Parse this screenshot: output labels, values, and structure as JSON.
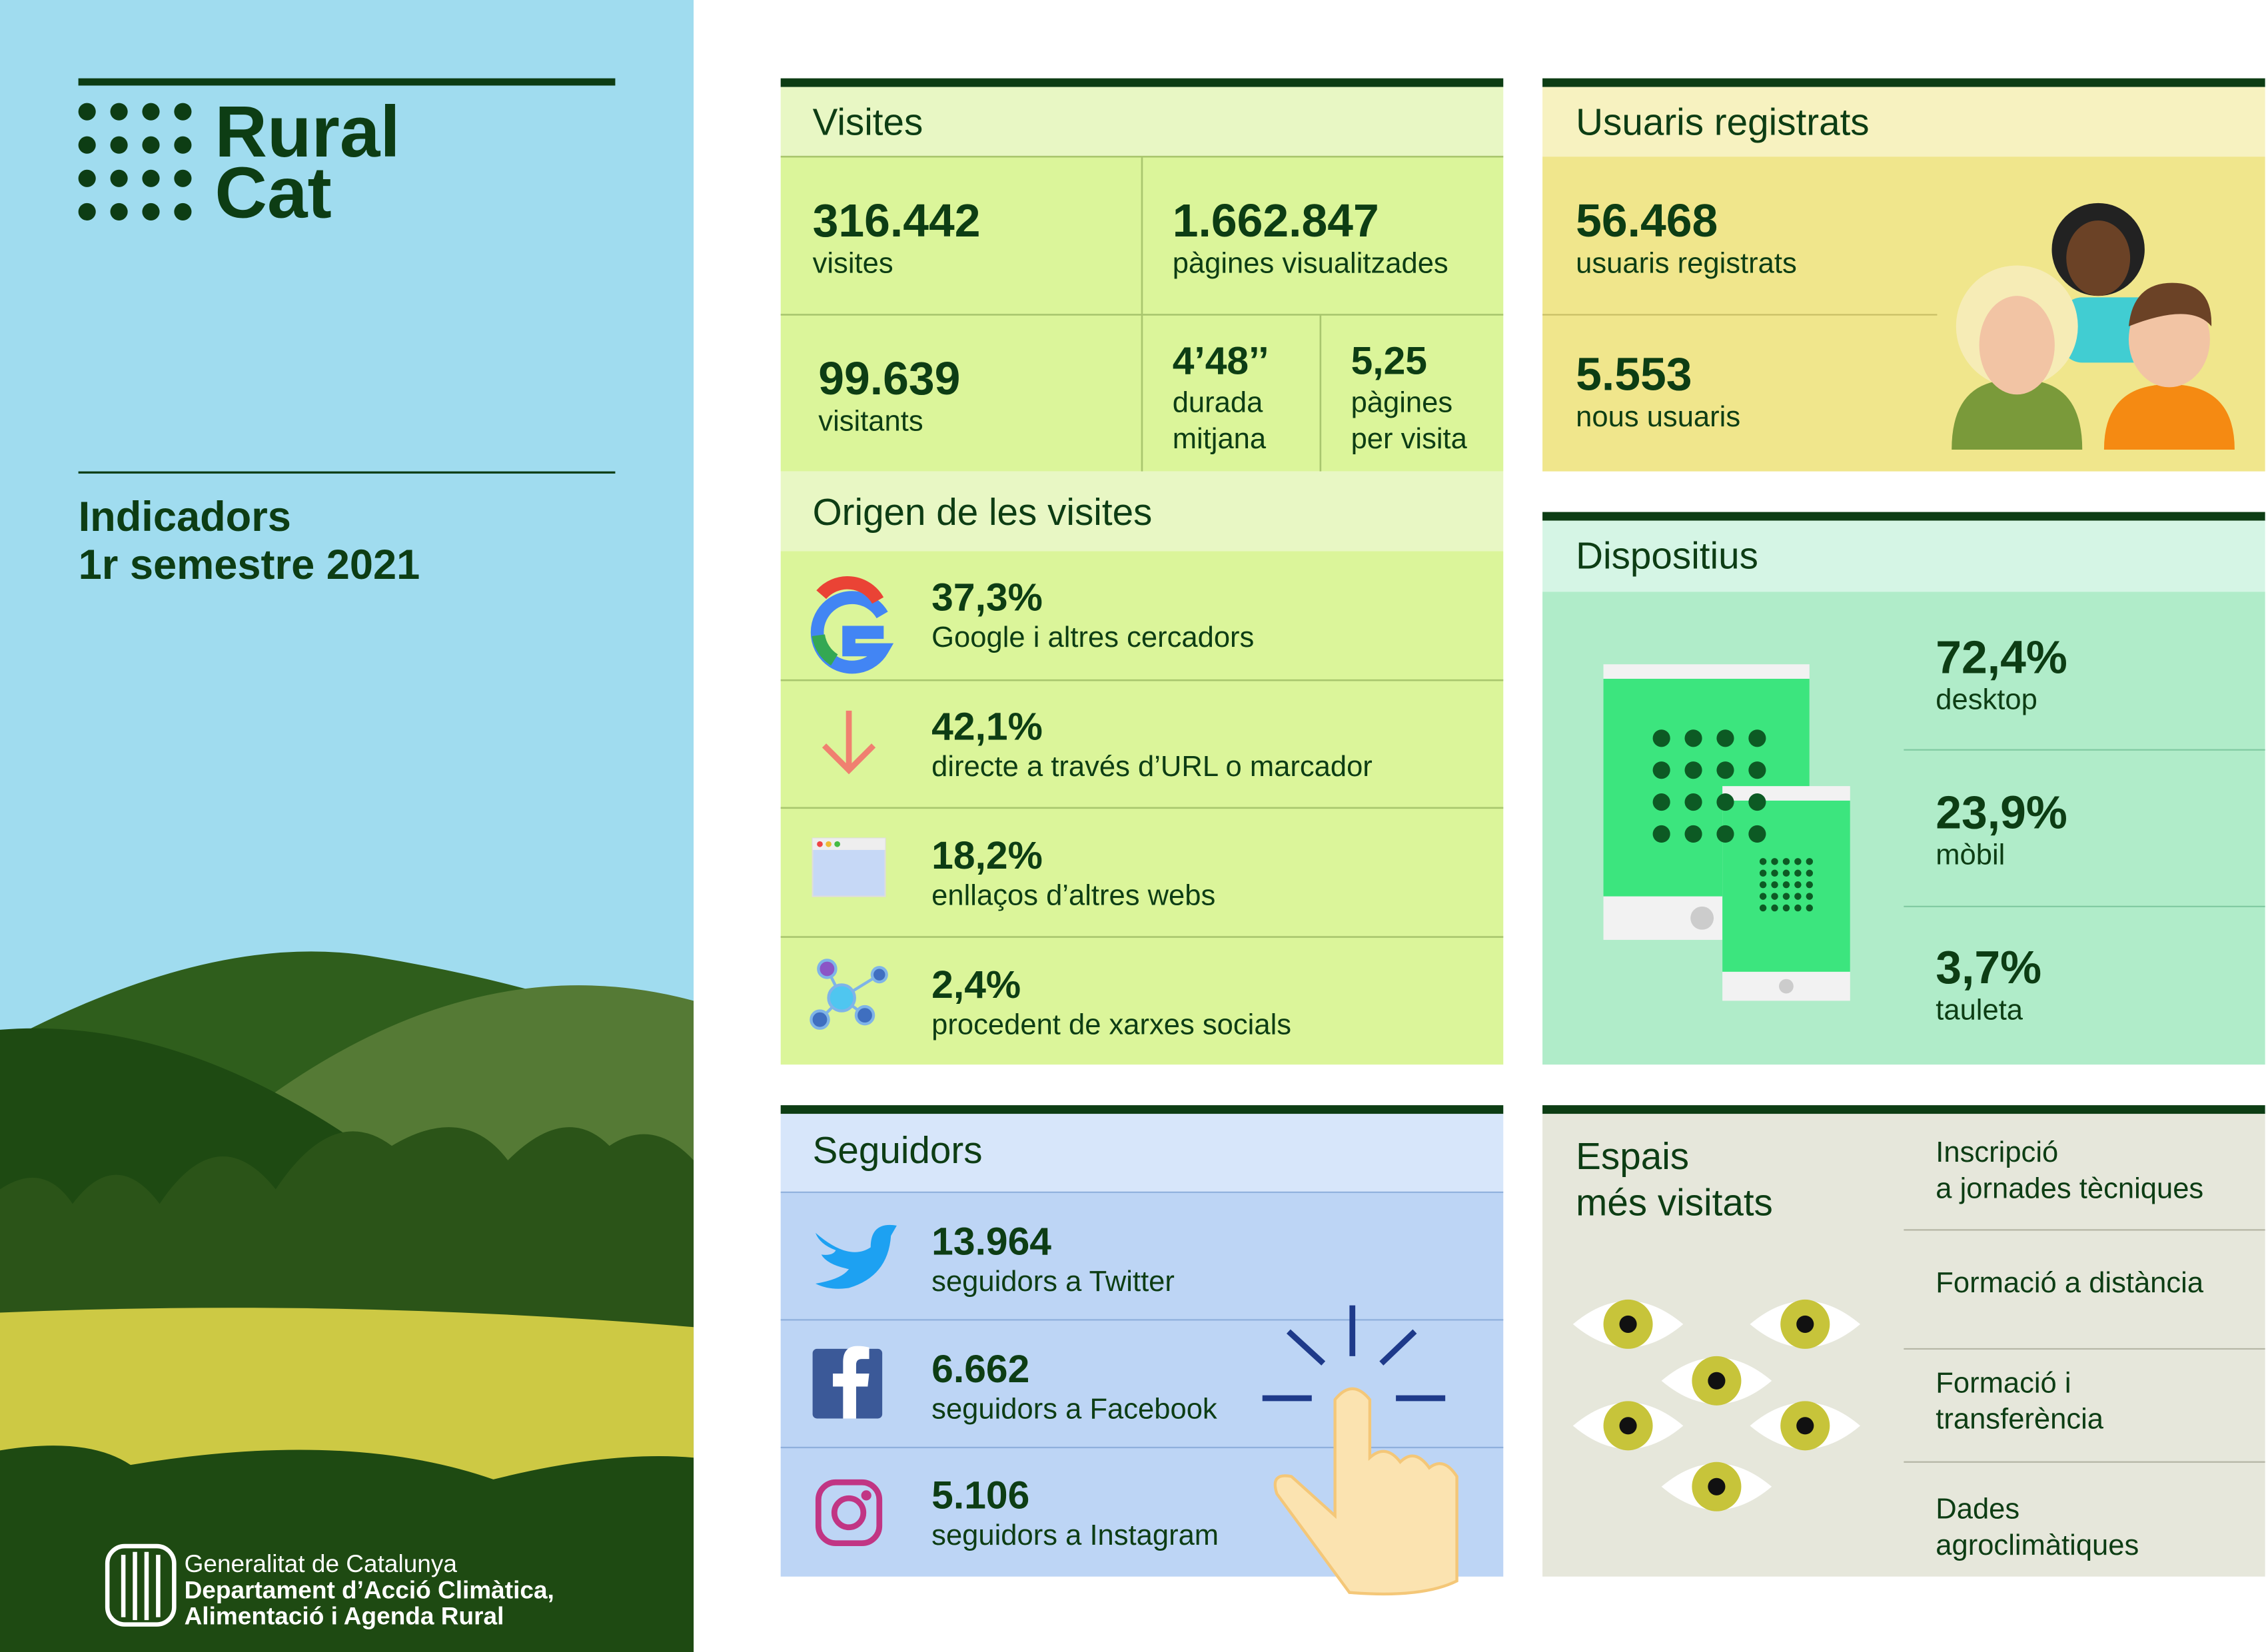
{
  "brand": {
    "line1": "Rural",
    "line2": "Cat"
  },
  "heading": {
    "line1": "Indicadors",
    "line2": "1r semestre 2021"
  },
  "footer": {
    "line1": "Generalitat de Catalunya",
    "line2": "Departament d’Acció Climàtica,",
    "line3": "Alimentació i Agenda Rural"
  },
  "visites": {
    "title": "Visites",
    "stats": [
      {
        "value": "316.442",
        "label": [
          "visites"
        ]
      },
      {
        "value": "1.662.847",
        "label": [
          "pàgines visualitzades"
        ]
      },
      {
        "value": "99.639",
        "label": [
          "visitants"
        ]
      },
      {
        "value": "4’48’’",
        "label": [
          "durada",
          "mitjana"
        ]
      },
      {
        "value": "5,25",
        "label": [
          "pàgines",
          "per visita"
        ]
      }
    ]
  },
  "origen": {
    "title": "Origen de les visites",
    "items": [
      {
        "value": "37,3%",
        "label": "Google i altres cercadors"
      },
      {
        "value": "42,1%",
        "label": "directe a través d’URL o marcador"
      },
      {
        "value": "18,2%",
        "label": "enllaços d’altres webs"
      },
      {
        "value": "2,4%",
        "label": "procedent de xarxes socials"
      }
    ]
  },
  "usuaris": {
    "title": "Usuaris registrats",
    "stats": [
      {
        "value": "56.468",
        "label": "usuaris registrats"
      },
      {
        "value": "5.553",
        "label": "nous usuaris"
      }
    ]
  },
  "dispositius": {
    "title": "Dispositius",
    "items": [
      {
        "value": "72,4%",
        "label": "desktop"
      },
      {
        "value": "23,9%",
        "label": "mòbil"
      },
      {
        "value": "3,7%",
        "label": "tauleta"
      }
    ]
  },
  "seguidors": {
    "title": "Seguidors",
    "items": [
      {
        "value": "13.964",
        "label": "seguidors a Twitter"
      },
      {
        "value": "6.662",
        "label": "seguidors a Facebook"
      },
      {
        "value": "5.106",
        "label": "seguidors a Instagram"
      }
    ]
  },
  "espais": {
    "title": [
      "Espais",
      "més visitats"
    ],
    "items": [
      [
        "Inscripció",
        "a jornades tècniques"
      ],
      [
        "Formació a distància"
      ],
      [
        "Formació i",
        "transferència"
      ],
      [
        "Dades",
        "agroclimàtiques"
      ]
    ]
  }
}
